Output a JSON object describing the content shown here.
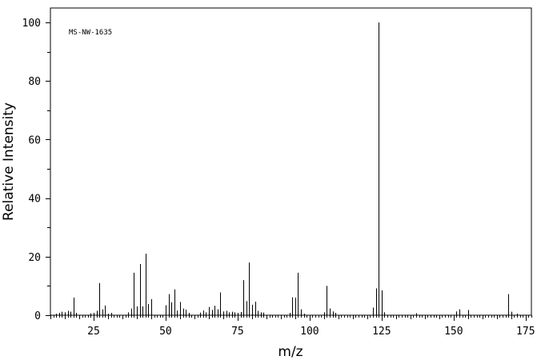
{
  "chart_data": {
    "type": "bar",
    "xlabel": "m/z",
    "ylabel": "Relative Intensity",
    "annotation": "MS-NW-1635",
    "xlim": [
      10,
      177
    ],
    "ylim": [
      0,
      100
    ],
    "x_ticks": [
      25,
      50,
      75,
      100,
      125,
      150,
      175
    ],
    "y_ticks": [
      0,
      20,
      40,
      60,
      80,
      100
    ],
    "grid": false,
    "legend": "none",
    "color": "#000000",
    "peaks": [
      [
        12,
        0.5
      ],
      [
        13,
        0.8
      ],
      [
        14,
        1.2
      ],
      [
        15,
        1.0
      ],
      [
        16,
        1.5
      ],
      [
        17,
        1.2
      ],
      [
        18,
        6.0
      ],
      [
        19,
        0.8
      ],
      [
        24,
        0.6
      ],
      [
        25,
        0.8
      ],
      [
        26,
        1.5
      ],
      [
        27,
        11.0
      ],
      [
        28,
        2.0
      ],
      [
        29,
        3.3
      ],
      [
        30,
        0.5
      ],
      [
        31,
        0.8
      ],
      [
        37,
        1.0
      ],
      [
        38,
        2.3
      ],
      [
        39,
        14.5
      ],
      [
        40,
        3.0
      ],
      [
        41,
        17.5
      ],
      [
        42,
        3.0
      ],
      [
        43,
        21.0
      ],
      [
        44,
        3.8
      ],
      [
        45,
        5.5
      ],
      [
        50,
        3.4
      ],
      [
        51,
        7.2
      ],
      [
        52,
        4.4
      ],
      [
        53,
        8.8
      ],
      [
        54,
        1.6
      ],
      [
        55,
        4.5
      ],
      [
        56,
        2.3
      ],
      [
        57,
        1.9
      ],
      [
        58,
        0.8
      ],
      [
        62,
        0.9
      ],
      [
        63,
        1.6
      ],
      [
        64,
        1.0
      ],
      [
        65,
        2.8
      ],
      [
        66,
        1.8
      ],
      [
        67,
        3.2
      ],
      [
        68,
        2.0
      ],
      [
        69,
        7.8
      ],
      [
        70,
        1.3
      ],
      [
        71,
        1.5
      ],
      [
        72,
        1.0
      ],
      [
        73,
        1.2
      ],
      [
        74,
        1.0
      ],
      [
        75,
        0.8
      ],
      [
        76,
        1.1
      ],
      [
        77,
        12.0
      ],
      [
        78,
        4.8
      ],
      [
        79,
        18.0
      ],
      [
        80,
        3.6
      ],
      [
        81,
        4.6
      ],
      [
        82,
        1.5
      ],
      [
        83,
        1.0
      ],
      [
        84,
        0.9
      ],
      [
        93,
        0.8
      ],
      [
        94,
        6.1
      ],
      [
        95,
        6.0
      ],
      [
        96,
        14.5
      ],
      [
        97,
        2.0
      ],
      [
        98,
        0.5
      ],
      [
        105,
        1.0
      ],
      [
        106,
        10.0
      ],
      [
        107,
        2.3
      ],
      [
        108,
        1.3
      ],
      [
        109,
        0.8
      ],
      [
        122,
        2.6
      ],
      [
        123,
        9.2
      ],
      [
        124,
        100
      ],
      [
        125,
        8.5
      ],
      [
        126,
        1.0
      ],
      [
        137,
        0.7
      ],
      [
        151,
        1.3
      ],
      [
        152,
        2.0
      ],
      [
        155,
        1.8
      ],
      [
        169,
        7.2
      ],
      [
        170,
        1.2
      ],
      [
        172,
        0.5
      ]
    ]
  }
}
